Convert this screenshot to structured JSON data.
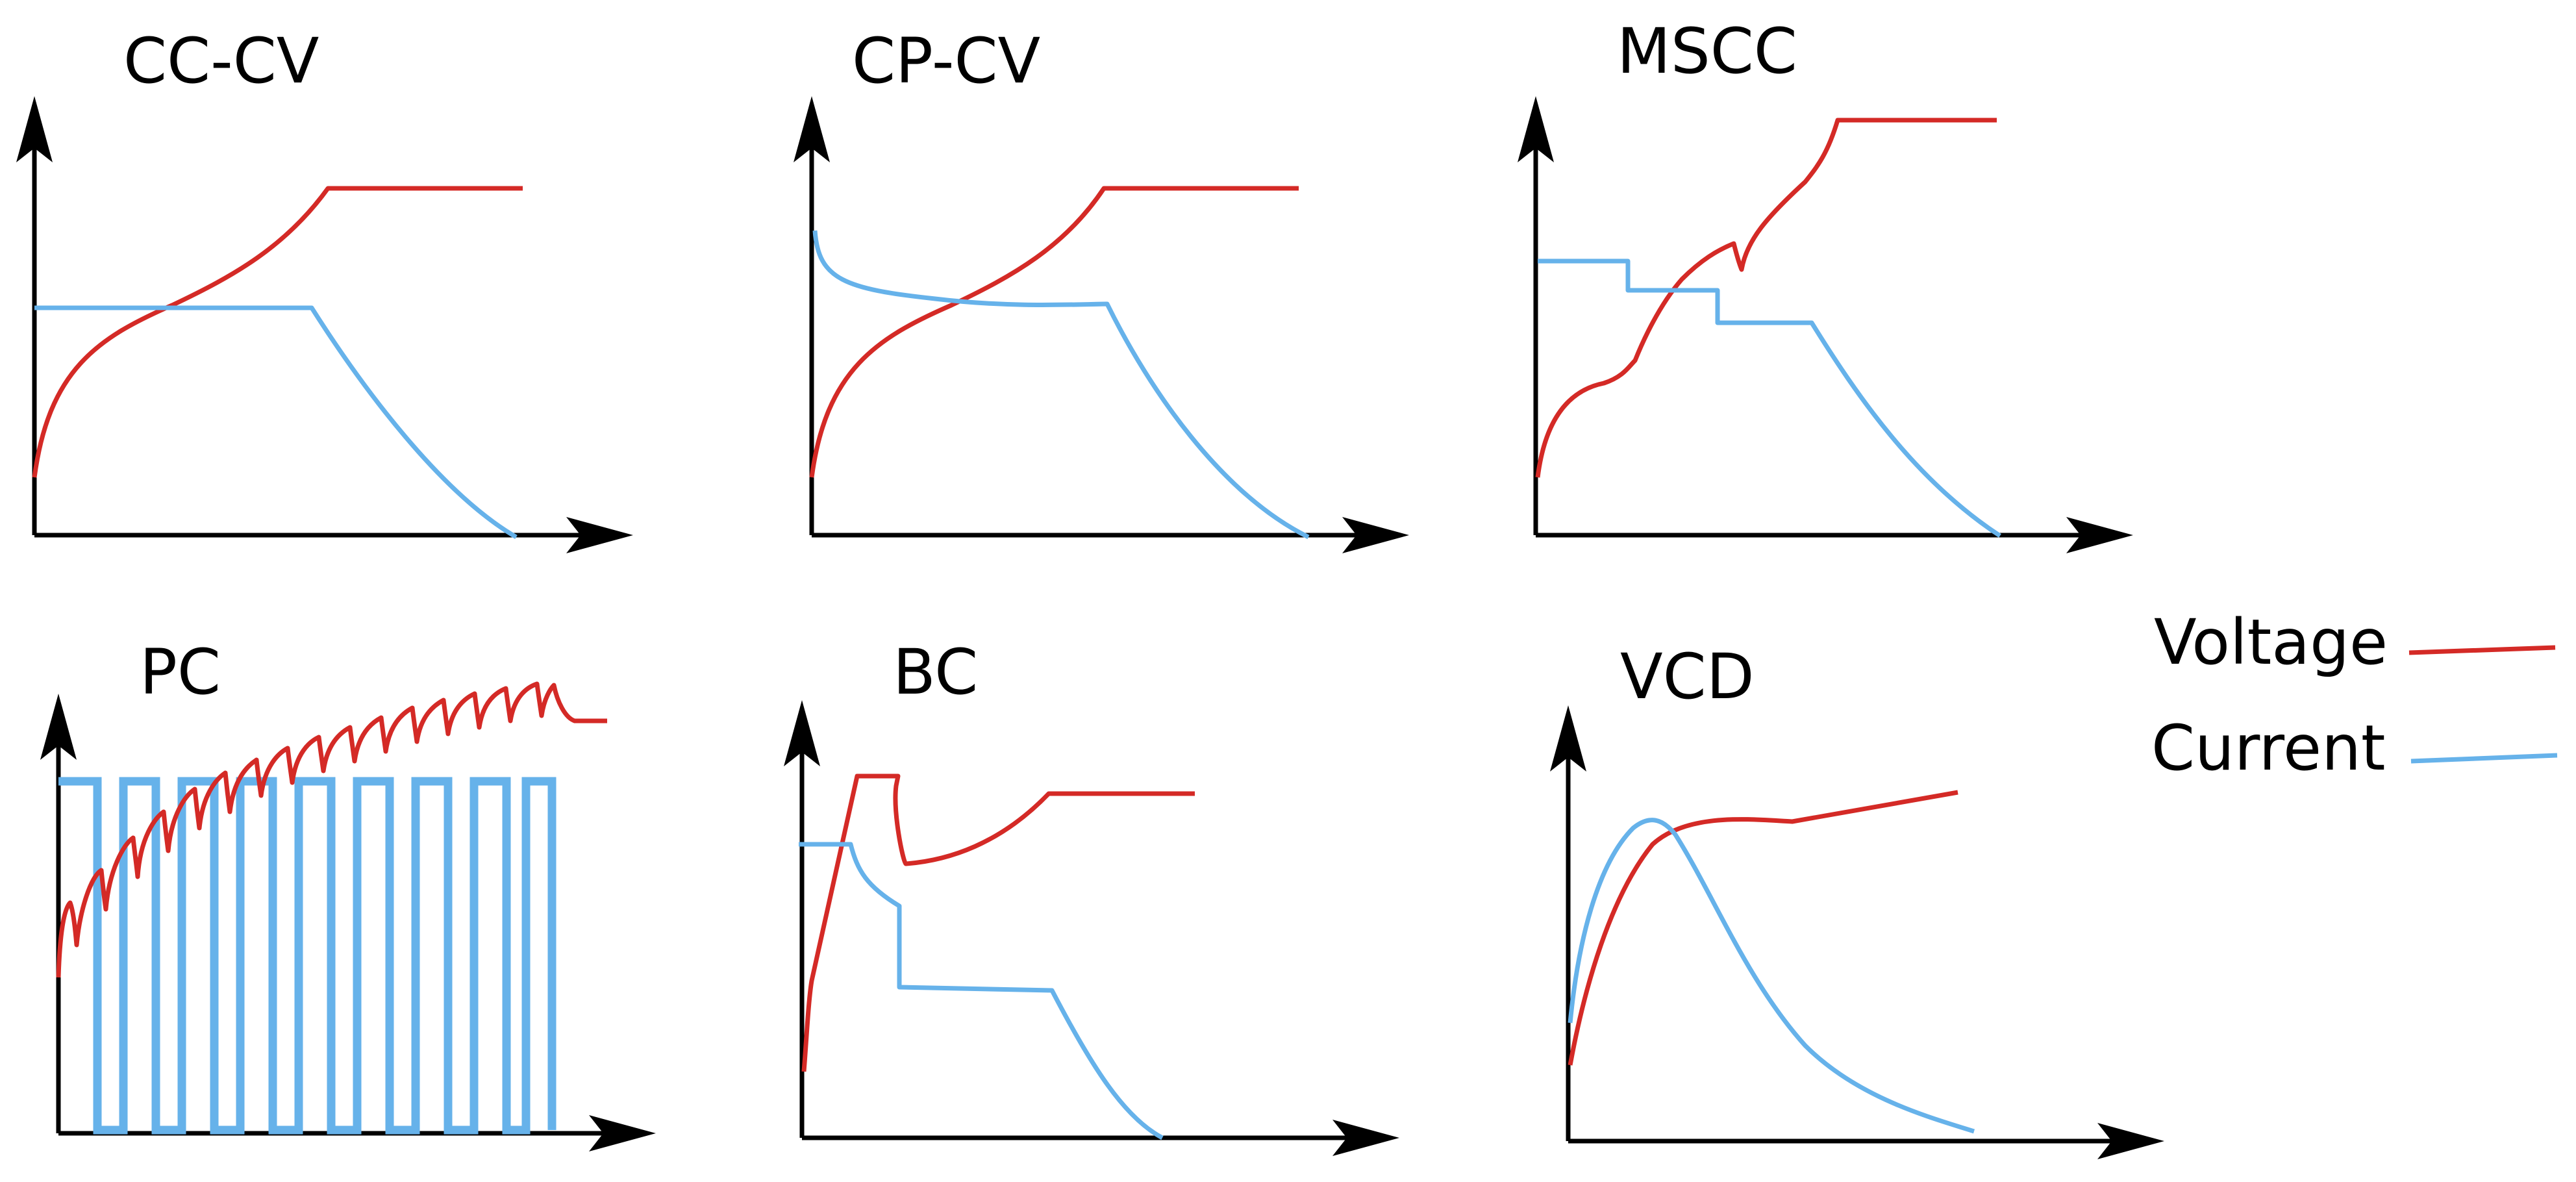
{
  "colors": {
    "voltage": "#d42a26",
    "current": "#66b2ea",
    "axis": "#000000"
  },
  "panels": [
    {
      "title": "CC-CV"
    },
    {
      "title": "CP-CV"
    },
    {
      "title": "MSCC"
    },
    {
      "title": "PC"
    },
    {
      "title": "BC"
    },
    {
      "title": "VCD"
    }
  ],
  "legend": {
    "voltage": "Voltage",
    "current": "Current"
  }
}
